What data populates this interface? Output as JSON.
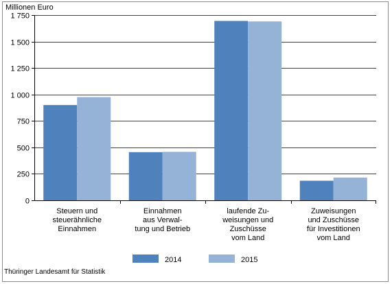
{
  "chart_data": {
    "type": "bar",
    "ylabel": "Millionen Euro",
    "ylim": [
      0,
      1750
    ],
    "yticks": [
      0,
      250,
      500,
      750,
      1000,
      1250,
      1500,
      1750
    ],
    "ytick_labels": [
      "0",
      "250",
      "500",
      "750",
      "1 000",
      "1 250",
      "1 500",
      "1 750"
    ],
    "grid": true,
    "legend_position": "bottom-center",
    "categories": [
      [
        "Steuern und",
        "steuerähnliche",
        "Einnahmen"
      ],
      [
        "Einnahmen",
        "aus Verwal-",
        "tung und Betrieb"
      ],
      [
        "laufende Zu-",
        "weisungen und",
        "Zuschüsse",
        "vom Land"
      ],
      [
        "Zuweisungen",
        "und Zuschüsse",
        "für Investitionen",
        "vom Land"
      ]
    ],
    "series": [
      {
        "name": "2014",
        "color": "#4f81bd",
        "values": [
          900,
          455,
          1695,
          185
        ]
      },
      {
        "name": "2015",
        "color": "#95b3d7",
        "values": [
          975,
          458,
          1690,
          215
        ]
      }
    ]
  },
  "source": "Thüringer Landesamt für Statistik"
}
